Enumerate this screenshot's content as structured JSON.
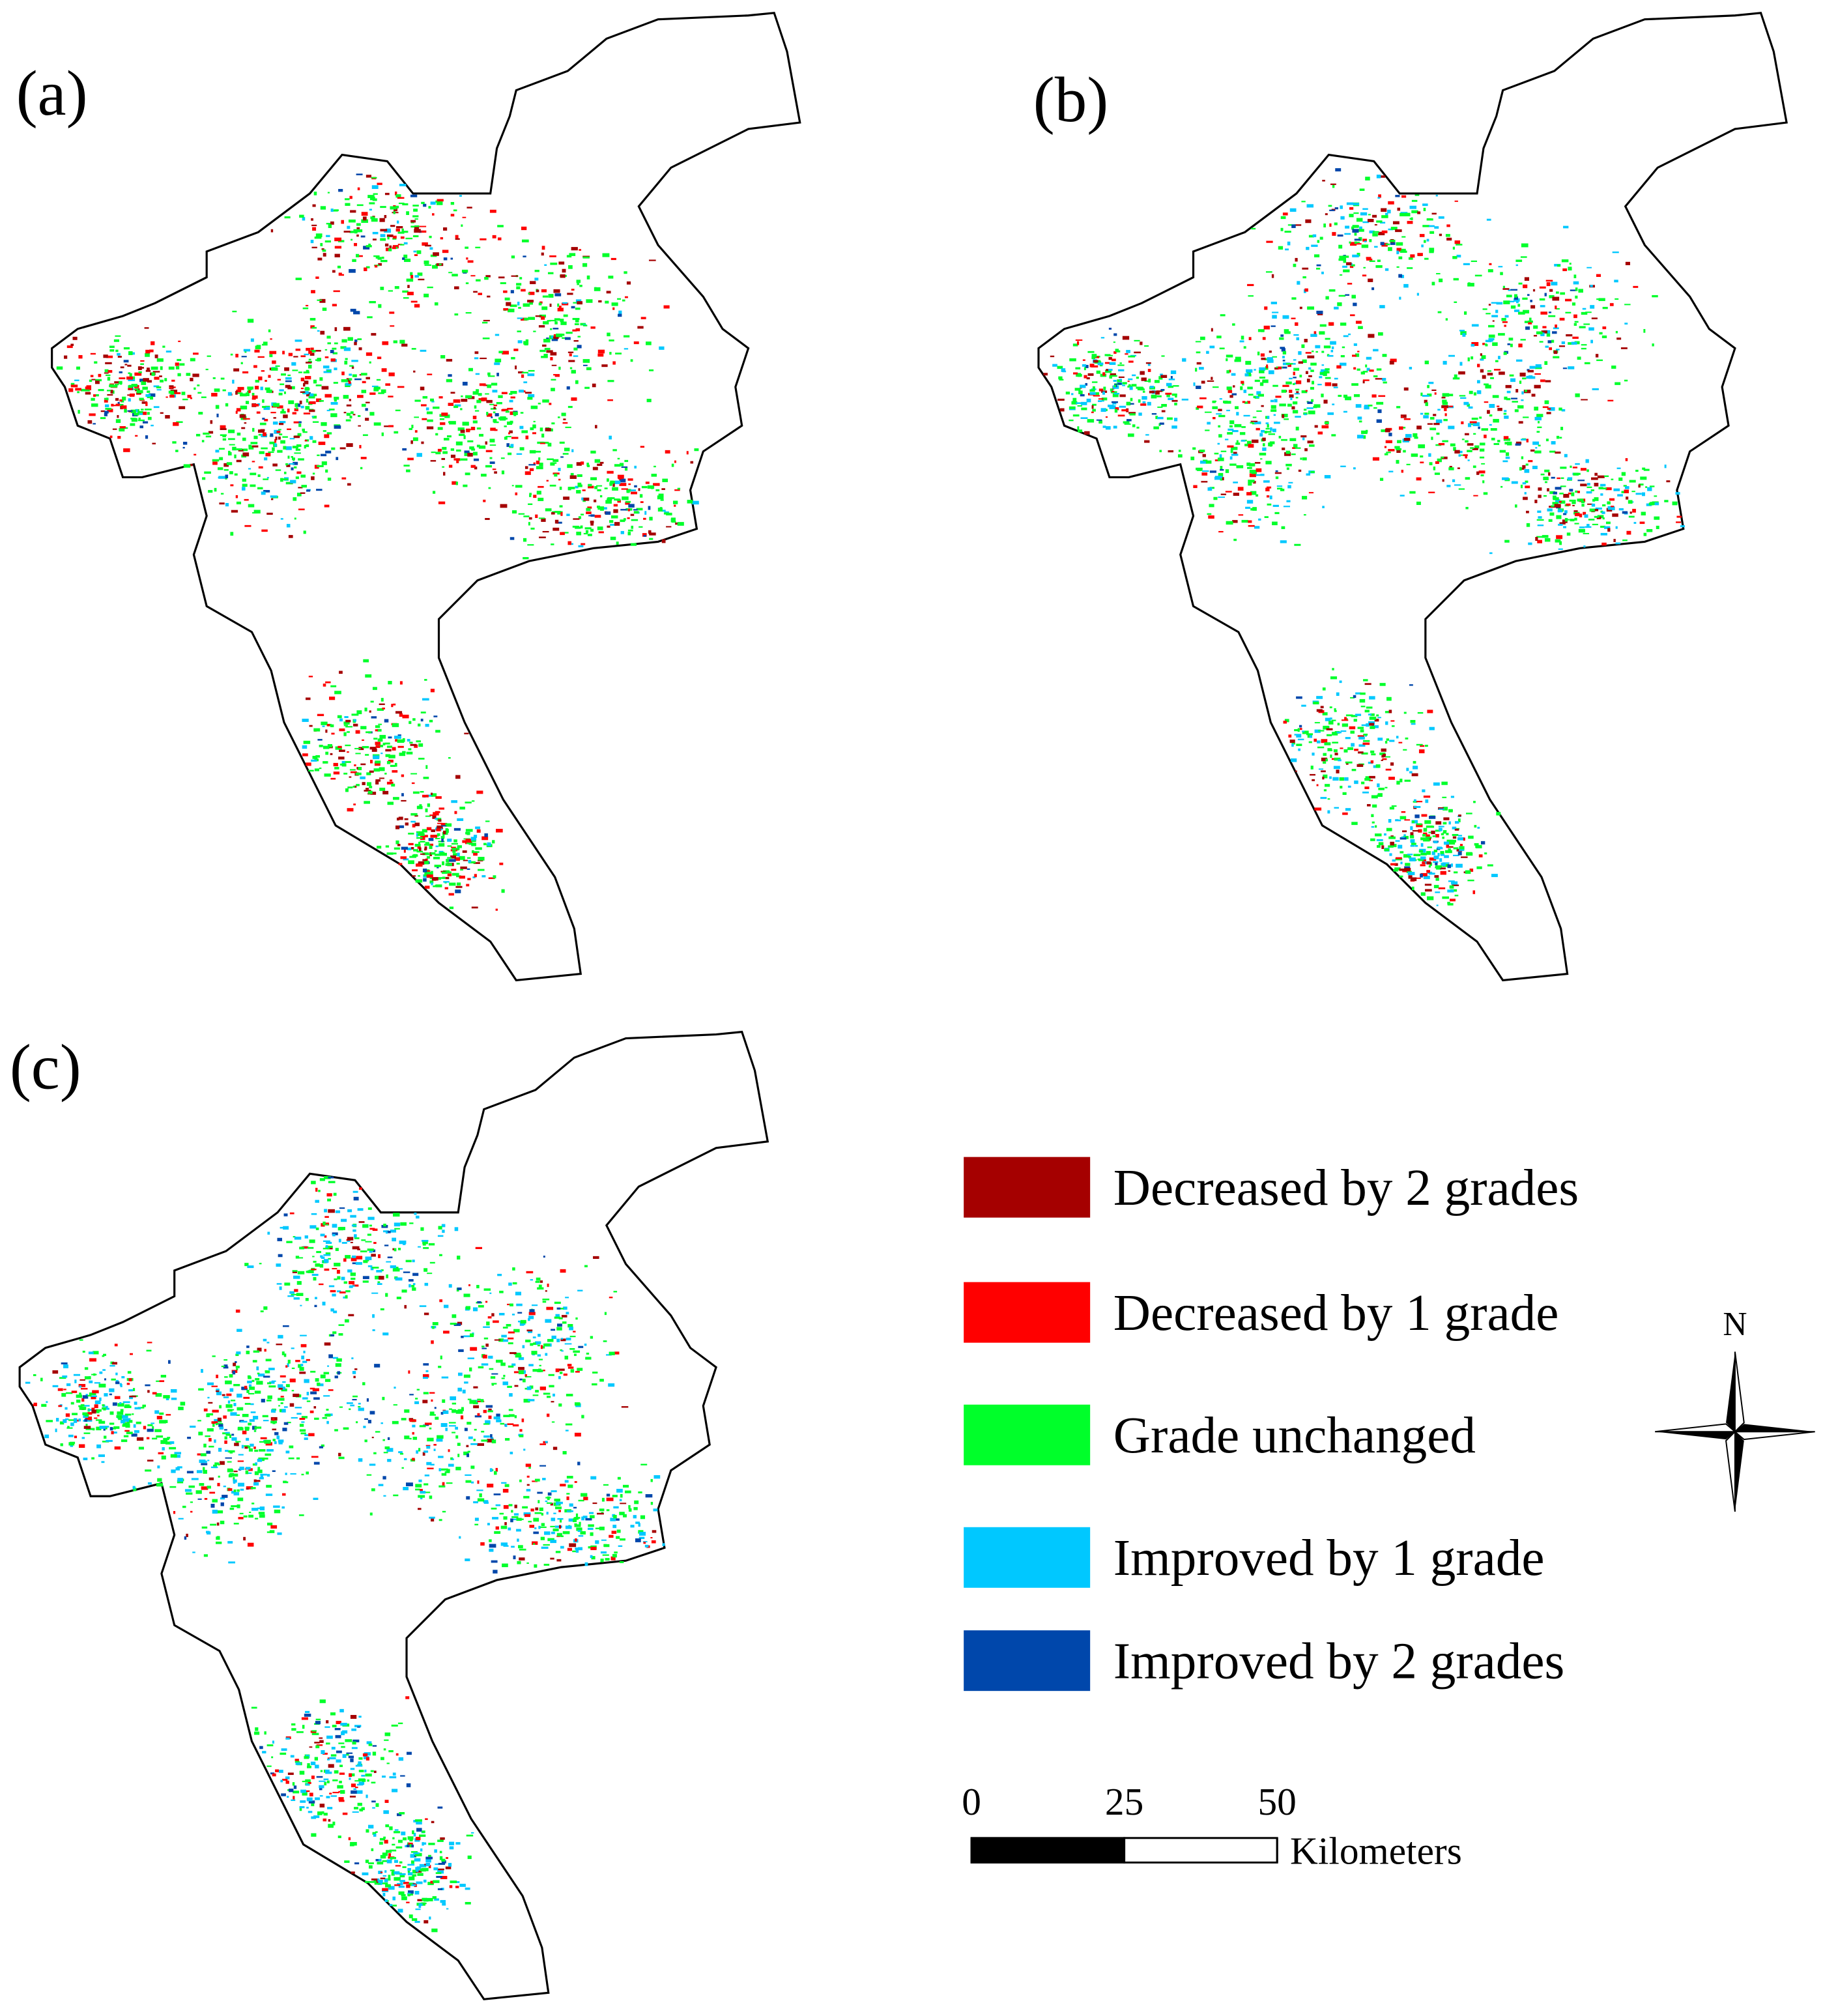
{
  "panels": [
    {
      "label": "(a)"
    },
    {
      "label": "(b)"
    },
    {
      "label": "(c)"
    }
  ],
  "legend": {
    "items": [
      {
        "label": "Decreased by 2 grades",
        "color": "#a50000"
      },
      {
        "label": "Decreased by 1 grade",
        "color": "#ff0000"
      },
      {
        "label": "Grade unchanged",
        "color": "#00ff2a"
      },
      {
        "label": "Improved by 1 grade",
        "color": "#00c8ff"
      },
      {
        "label": "Improved by 2 grades",
        "color": "#0047ab"
      }
    ]
  },
  "scale_bar": {
    "ticks": [
      0,
      25,
      50
    ],
    "unit": "Kilometers"
  },
  "north_arrow": {
    "label": "N"
  }
}
